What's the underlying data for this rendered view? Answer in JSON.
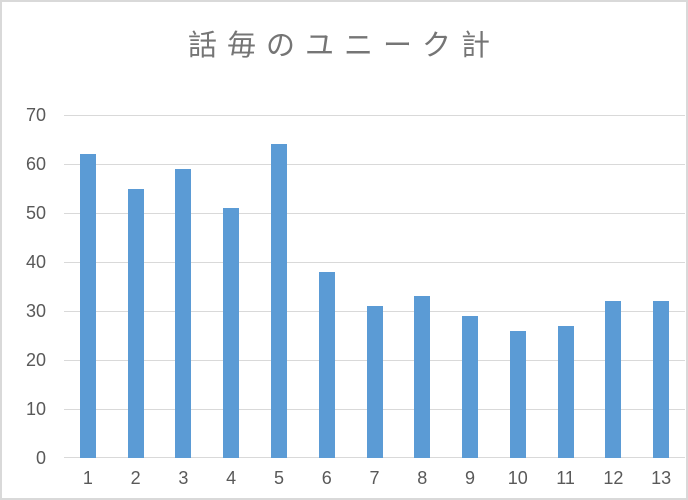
{
  "chart_data": {
    "type": "bar",
    "title": "話毎のユニーク計",
    "categories": [
      "1",
      "2",
      "3",
      "4",
      "5",
      "6",
      "7",
      "8",
      "9",
      "10",
      "11",
      "12",
      "13"
    ],
    "values": [
      62,
      55,
      59,
      51,
      64,
      38,
      31,
      33,
      29,
      26,
      27,
      32,
      32
    ],
    "xlabel": "",
    "ylabel": "",
    "ylim": [
      0,
      70
    ],
    "yticks": [
      0,
      10,
      20,
      30,
      40,
      50,
      60,
      70
    ],
    "grid": true,
    "legend": false,
    "layout_hints": {
      "gridlines": "horizontal only",
      "bars_per_category": 1
    },
    "colors": {
      "bar": "#5b9bd5",
      "gridline": "#d9d9d9",
      "axis_text": "#595959",
      "title_text": "#757575",
      "background": "#ffffff",
      "frame_border": "#d9d9d9"
    }
  }
}
